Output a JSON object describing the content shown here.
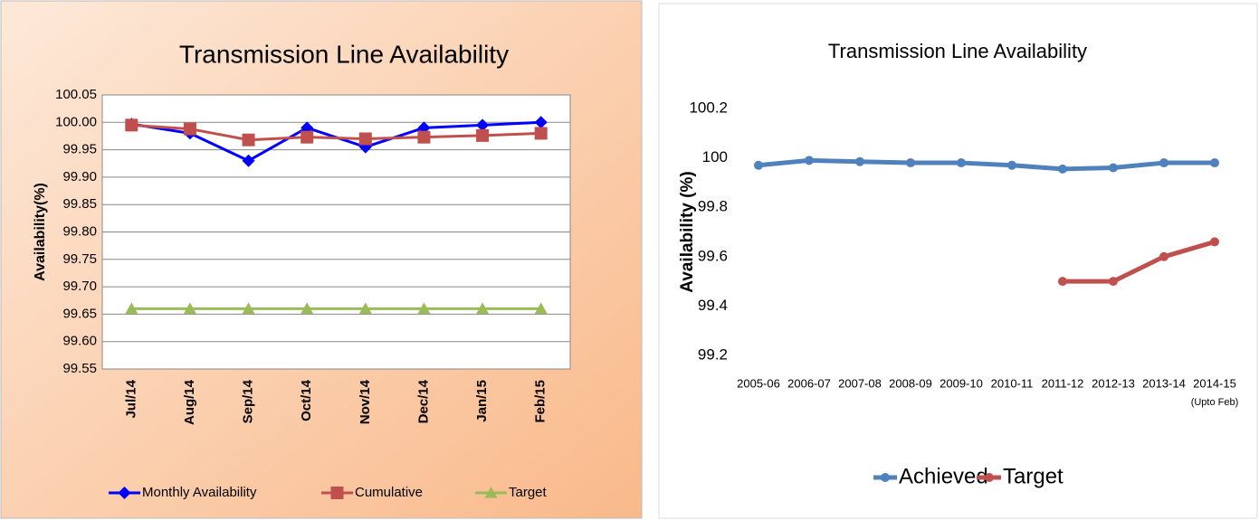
{
  "chart_data": [
    {
      "type": "line",
      "title": "Transmission Line Availability",
      "y_label": "Availability(%)",
      "categories": [
        "Jul/14",
        "Aug/14",
        "Sep/14",
        "Oct/14",
        "Nov/14",
        "Dec/14",
        "Jan/15",
        "Feb/15"
      ],
      "series": [
        {
          "name": "Monthly Availability",
          "color": "#0000ff",
          "marker": "diamond",
          "values": [
            99.997,
            99.98,
            99.93,
            99.99,
            99.955,
            99.99,
            99.995,
            100.0
          ]
        },
        {
          "name": "Cumulative",
          "color": "#c0504d",
          "marker": "square",
          "values": [
            99.995,
            99.988,
            99.968,
            99.973,
            99.97,
            99.973,
            99.976,
            99.98
          ]
        },
        {
          "name": "Target",
          "color": "#9bbb59",
          "marker": "triangle",
          "values": [
            99.66,
            99.66,
            99.66,
            99.66,
            99.66,
            99.66,
            99.66,
            99.66
          ]
        }
      ],
      "ylim": [
        99.55,
        100.05
      ],
      "yticks": [
        99.55,
        {
          "value": 99.6,
          "label": "99.60"
        },
        99.65,
        {
          "value": 99.7,
          "label": "99.70"
        },
        99.75,
        {
          "value": 99.8,
          "label": "99.80"
        },
        99.85,
        {
          "value": 99.9,
          "label": "99.90"
        },
        99.95,
        {
          "value": 100.0,
          "label": "100.00"
        },
        100.05
      ],
      "grid": true,
      "legend": "bottom"
    },
    {
      "type": "line",
      "title": "Transmission Line Availability",
      "y_label": "Availability  (%)",
      "categories": [
        "2005-06",
        "2006-07",
        "2007-08",
        "2008-09",
        "2009-10",
        "2010-11",
        "2011-12",
        "2012-13",
        "2013-14",
        "2014-15"
      ],
      "last_category_note": "(Upto Feb)",
      "series": [
        {
          "name": "Achieved",
          "color": "#4f81bd",
          "marker": "circle",
          "values": [
            99.97,
            99.99,
            99.985,
            99.98,
            99.98,
            99.97,
            99.955,
            99.96,
            99.98,
            99.98
          ]
        },
        {
          "name": "Target",
          "color": "#c0504d",
          "marker": "circle",
          "values": [
            null,
            null,
            null,
            null,
            null,
            null,
            99.5,
            99.5,
            99.6,
            99.66
          ]
        }
      ],
      "ylim": [
        99.2,
        100.2
      ],
      "yticks": [
        99.2,
        99.4,
        99.6,
        99.8,
        100,
        100.2
      ],
      "grid": false,
      "legend": "bottom"
    }
  ]
}
